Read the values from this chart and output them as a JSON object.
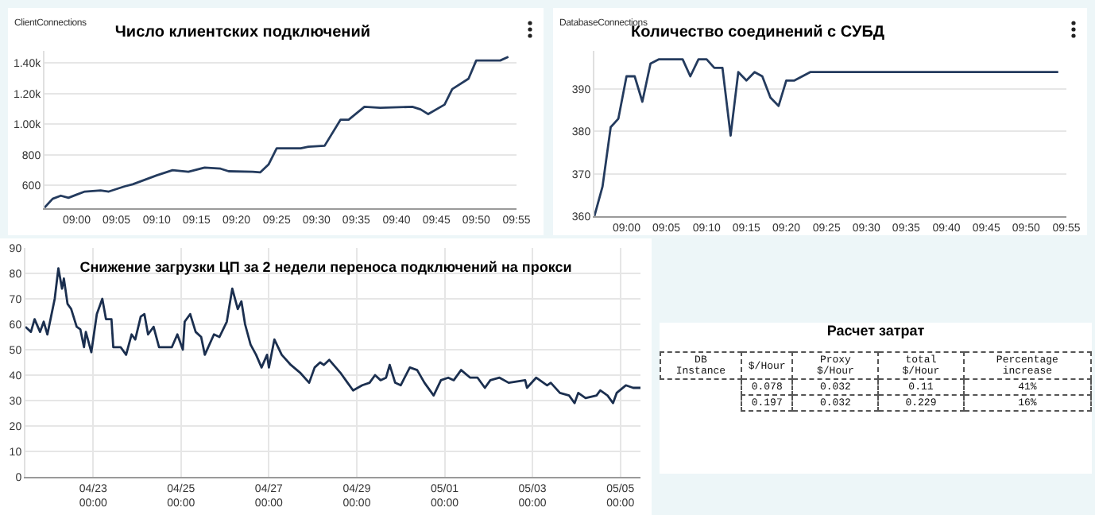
{
  "chart_data": [
    {
      "type": "line",
      "title": "Число клиентских подключений",
      "subtitle": "ClientConnections",
      "color": "#243b5e",
      "line_style": "solid",
      "grid": "y",
      "x": [
        8.933,
        8.95,
        8.967,
        8.983,
        9,
        9.017,
        9.05,
        9.067,
        9.1,
        9.117,
        9.167,
        9.2,
        9.233,
        9.267,
        9.3,
        9.317,
        9.367,
        9.383,
        9.4,
        9.417,
        9.467,
        9.483,
        9.517,
        9.55,
        9.567,
        9.6,
        9.633,
        9.7,
        9.717,
        9.733,
        9.767,
        9.783,
        9.817,
        9.833,
        9.883,
        9.9
      ],
      "values": [
        454,
        512,
        532,
        518,
        539,
        559,
        566,
        559,
        593,
        607,
        665,
        699,
        689,
        716,
        709,
        692,
        689,
        685,
        736,
        842,
        842,
        852,
        859,
        1029,
        1029,
        1114,
        1107,
        1114,
        1097,
        1066,
        1128,
        1230,
        1298,
        1417,
        1417,
        1441
      ],
      "xlim": [
        8.933,
        9.917
      ],
      "ylim": [
        450,
        1480
      ],
      "xticks": [
        {
          "value": 9,
          "label": "09:00"
        },
        {
          "value": 9.083,
          "label": "09:05"
        },
        {
          "value": 9.167,
          "label": "09:10"
        },
        {
          "value": 9.25,
          "label": "09:15"
        },
        {
          "value": 9.333,
          "label": "09:20"
        },
        {
          "value": 9.417,
          "label": "09:25"
        },
        {
          "value": 9.5,
          "label": "09:30"
        },
        {
          "value": 9.583,
          "label": "09:35"
        },
        {
          "value": 9.667,
          "label": "09:40"
        },
        {
          "value": 9.75,
          "label": "09:45"
        },
        {
          "value": 9.833,
          "label": "09:50"
        },
        {
          "value": 9.917,
          "label": "09:55"
        }
      ],
      "yticks": [
        600,
        800,
        {
          "value": 1000,
          "label": "1.00k"
        },
        {
          "value": 1200,
          "label": "1.20k"
        },
        {
          "value": 1400,
          "label": "1.40k"
        }
      ]
    },
    {
      "type": "line",
      "title": "Количество соединений с СУБД",
      "subtitle": "DatabaseConnections",
      "color": "#243b5e",
      "line_style": "solid",
      "grid": "y",
      "x": [
        8.933,
        8.95,
        8.967,
        8.983,
        9,
        9.017,
        9.033,
        9.05,
        9.067,
        9.117,
        9.133,
        9.15,
        9.167,
        9.183,
        9.2,
        9.217,
        9.233,
        9.25,
        9.267,
        9.283,
        9.3,
        9.317,
        9.333,
        9.35,
        9.383,
        9.9
      ],
      "values": [
        360,
        367,
        381,
        383,
        393,
        393,
        387,
        396,
        397,
        397,
        393,
        397,
        397,
        395,
        395,
        379,
        394,
        392,
        394,
        393,
        388,
        386,
        392,
        392,
        394,
        394
      ],
      "xlim": [
        8.933,
        9.917
      ],
      "ylim": [
        360,
        399
      ],
      "xticks": [
        {
          "value": 9,
          "label": "09:00"
        },
        {
          "value": 9.083,
          "label": "09:05"
        },
        {
          "value": 9.167,
          "label": "09:10"
        },
        {
          "value": 9.25,
          "label": "09:15"
        },
        {
          "value": 9.333,
          "label": "09:20"
        },
        {
          "value": 9.417,
          "label": "09:25"
        },
        {
          "value": 9.5,
          "label": "09:30"
        },
        {
          "value": 9.583,
          "label": "09:35"
        },
        {
          "value": 9.667,
          "label": "09:40"
        },
        {
          "value": 9.75,
          "label": "09:45"
        },
        {
          "value": 9.833,
          "label": "09:50"
        },
        {
          "value": 9.917,
          "label": "09:55"
        }
      ],
      "yticks": [
        360,
        370,
        380,
        390
      ]
    },
    {
      "type": "line",
      "title": "Снижение загрузки ЦП за 2 недели переноса подключений на прокси",
      "color": "#1b2f4f",
      "line_style": "solid",
      "grid": true,
      "x": [
        "--04-21T11:00",
        "--04-21T14:00",
        "--04-21T16:00",
        "--04-21T19:00",
        "--04-21T21:00",
        "--04-21T23:00",
        "--04-22T01:00",
        "--04-22T03:00",
        "--04-22T05:00",
        "--04-22T07:00",
        "--04-22T08:00",
        "--04-22T10:00",
        "--04-22T12:00",
        "--04-22T15:00",
        "--04-22T17:00",
        "--04-22T19:00",
        "--04-22T20:00",
        "--04-22T23:00",
        "--04-23T02:00",
        "--04-23T05:00",
        "--04-23T07:00",
        "--04-23T10:00",
        "--04-23T11:00",
        "--04-23T15:00",
        "--04-23T18:00",
        "--04-23T21:00",
        "--04-23T23:00",
        "--04-24T02:00",
        "--04-24T04:00",
        "--04-24T06:00",
        "--04-24T09:00",
        "--04-24T12:00",
        "--04-24T19:00",
        "--04-24T22:00",
        "--04-25T01:00",
        "--04-25T02:00",
        "--04-25T05:00",
        "--04-25T08:00",
        "--04-25T11:00",
        "--04-25T13:00",
        "--04-25T18:00",
        "--04-25T21:00",
        "--04-26T01:00",
        "--04-26T04:00",
        "--04-26T07:00",
        "--04-26T09:00",
        "--04-26T11:00",
        "--04-26T14:00",
        "--04-26T17:00",
        "--04-26T20:00",
        "--04-26T23:00",
        "--04-27T00:00",
        "--04-27T03:00",
        "--04-27T07:00",
        "--04-27T12:00",
        "--04-27T17:00",
        "--04-27T22:00",
        "--04-28T01:00",
        "--04-28T04:00",
        "--04-28T06:00",
        "--04-28T09:00",
        "--04-28T15:00",
        "--04-28T19:00",
        "--04-28T22:00",
        "--04-29T03:00",
        "--04-29T07:00",
        "--04-29T10:00",
        "--04-29T13:00",
        "--04-29T16:00",
        "--04-29T18:00",
        "--04-29T21:00",
        "--04-30T00:00",
        "--04-30T05:00",
        "--04-30T09:00",
        "--04-30T13:00",
        "--04-30T18:00",
        "--04-30T22:00",
        "--05-01T02:00",
        "--05-01T05:00",
        "--05-01T09:00",
        "--05-01T14:00",
        "--05-01T18:00",
        "--05-01T22:00",
        "--05-02T01:00",
        "--05-02T06:00",
        "--05-02T11:00",
        "--05-02T20:00",
        "--05-02T21:00",
        "--05-03T02:00",
        "--05-03T08:00",
        "--05-03T10:00",
        "--05-03T15:00",
        "--05-03T20:00",
        "--05-03T23:00",
        "--05-04T01:00",
        "--05-04T05:00",
        "--05-04T11:00",
        "--05-04T13:00",
        "--05-04T17:00",
        "--05-04T20:00",
        "--05-04T22:00",
        "--05-05T03:00",
        "--05-05T07:00",
        "--05-05T11:00"
      ],
      "values": [
        59,
        57,
        62,
        57,
        61,
        56,
        63,
        70,
        82,
        74,
        78,
        68,
        66,
        59,
        58,
        51,
        57,
        49,
        64,
        70,
        62,
        62,
        51,
        51,
        48,
        56,
        54,
        63,
        64,
        56,
        59,
        51,
        51,
        56,
        50,
        61,
        64,
        57,
        55,
        48,
        56,
        55,
        61,
        74,
        66,
        69,
        60,
        52,
        48,
        43,
        48,
        43,
        54,
        48,
        44,
        41,
        37,
        43,
        45,
        44,
        46,
        41,
        37,
        34,
        36,
        37,
        40,
        38,
        39,
        44,
        37,
        36,
        43,
        42,
        37,
        32,
        38,
        39,
        38,
        42,
        39,
        39,
        35,
        38,
        39,
        37,
        38,
        35,
        39,
        36,
        37,
        33,
        32,
        29,
        33,
        31,
        32,
        34,
        32,
        29,
        33,
        36,
        35,
        35
      ],
      "xlim": [
        "--04-21T11:00",
        "--05-05T11:00"
      ],
      "ylim": [
        0,
        90
      ],
      "xticks": [
        {
          "value": "--04-23T00:00",
          "label": "04/23\n00:00"
        },
        {
          "value": "--04-25T00:00",
          "label": "04/25\n00:00"
        },
        {
          "value": "--04-27T00:00",
          "label": "04/27\n00:00"
        },
        {
          "value": "--04-29T00:00",
          "label": "04/29\n00:00"
        },
        {
          "value": "--05-01T00:00",
          "label": "05/01\n00:00"
        },
        {
          "value": "--05-03T00:00",
          "label": "05/03\n00:00"
        },
        {
          "value": "--05-05T00:00",
          "label": "05/05\n00:00"
        }
      ],
      "yticks": [
        0,
        10,
        20,
        30,
        40,
        50,
        60,
        70,
        80,
        90
      ]
    },
    {
      "type": "other",
      "title": "Расчет затрат",
      "categories": [
        "DB Instance",
        "$/Hour",
        "Proxy $/Hour",
        "total $/Hour",
        "Percentage increase"
      ],
      "cell_labels": [
        [
          null,
          "0.078",
          "0.032",
          "0.11",
          "41%"
        ],
        [
          null,
          "0.197",
          "0.032",
          "0.229",
          "16%"
        ]
      ]
    }
  ]
}
